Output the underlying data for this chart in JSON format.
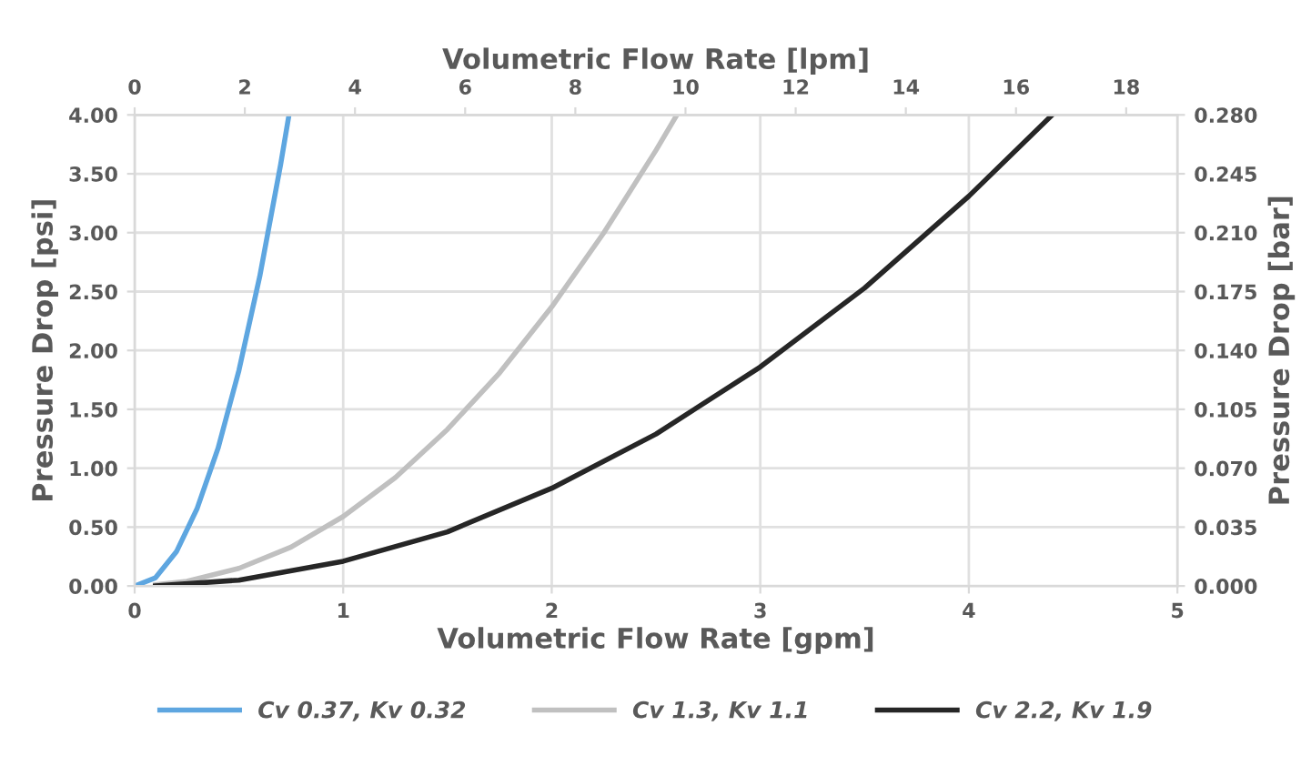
{
  "chart_data": {
    "type": "line",
    "xlabel": "Volumetric Flow Rate [gpm]",
    "ylabel": "Pressure Drop [psi]",
    "y2label": "Pressure Drop [bar]",
    "x2label": "Volumetric Flow Rate [lpm]",
    "xlim": [
      0,
      5
    ],
    "xticks": [
      0,
      1,
      2,
      3,
      4,
      5
    ],
    "ylim": [
      0,
      4
    ],
    "yticks": [
      {
        "value": 0,
        "label": "0.00"
      },
      {
        "value": 0.5,
        "label": "0.50"
      },
      {
        "value": 1,
        "label": "1.00"
      },
      {
        "value": 1.5,
        "label": "1.50"
      },
      {
        "value": 2,
        "label": "2.00"
      },
      {
        "value": 2.5,
        "label": "2.50"
      },
      {
        "value": 3,
        "label": "3.00"
      },
      {
        "value": 3.5,
        "label": "3.50"
      },
      {
        "value": 4,
        "label": "4.00"
      }
    ],
    "x2lim": [
      0,
      18.93
    ],
    "x2ticks": [
      0,
      2,
      4,
      6,
      8,
      10,
      12,
      14,
      16,
      18
    ],
    "y2lim": [
      0,
      0.28
    ],
    "y2ticks": [
      {
        "value": 0,
        "label": "0.000"
      },
      {
        "value": 0.035,
        "label": "0.035"
      },
      {
        "value": 0.07,
        "label": "0.070"
      },
      {
        "value": 0.105,
        "label": "0.105"
      },
      {
        "value": 0.14,
        "label": "0.140"
      },
      {
        "value": 0.175,
        "label": "0.175"
      },
      {
        "value": 0.21,
        "label": "0.210"
      },
      {
        "value": 0.245,
        "label": "0.245"
      },
      {
        "value": 0.28,
        "label": "0.280"
      }
    ],
    "grid": true,
    "legend": "bottom",
    "line_style": "solid",
    "marker": "none",
    "series": [
      {
        "name": "Cv 0.37, Kv 0.32",
        "color": "#5ea6e0",
        "x": [
          0,
          0.1,
          0.2,
          0.3,
          0.4,
          0.5,
          0.6,
          0.7,
          0.74
        ],
        "values": [
          0,
          0.07,
          0.29,
          0.66,
          1.17,
          1.83,
          2.63,
          3.58,
          4.0
        ]
      },
      {
        "name": "Cv 1.3, Kv 1.1",
        "color": "#c0c0c0",
        "x": [
          0.1,
          0.25,
          0.5,
          0.75,
          1,
          1.25,
          1.5,
          1.75,
          2,
          2.25,
          2.5,
          2.6
        ],
        "values": [
          0.01,
          0.04,
          0.15,
          0.33,
          0.59,
          0.92,
          1.33,
          1.81,
          2.37,
          3.0,
          3.7,
          4.0
        ]
      },
      {
        "name": "Cv 2.2, Kv 1.9",
        "color": "#262626",
        "x": [
          0.1,
          0.5,
          1,
          1.5,
          2,
          2.5,
          3,
          3.5,
          4,
          4.4
        ],
        "values": [
          0.0,
          0.05,
          0.21,
          0.46,
          0.83,
          1.29,
          1.86,
          2.53,
          3.31,
          4.0
        ]
      }
    ]
  }
}
